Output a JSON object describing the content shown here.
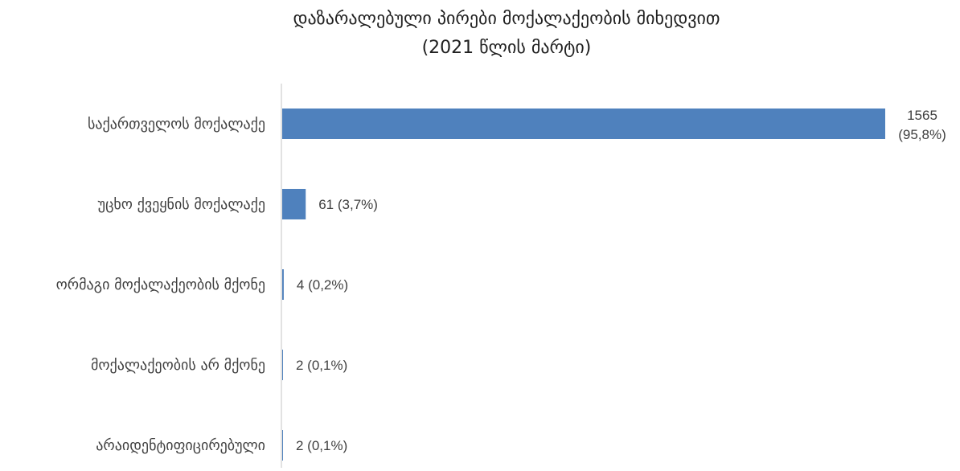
{
  "chart_data": {
    "type": "bar",
    "orientation": "horizontal",
    "title": "დაზარალებული პირები მოქალაქეობის მიხედვით",
    "subtitle": "(2021 წლის  მარტი)",
    "categories": [
      "საქართველოს მოქალაქე",
      "უცხო ქვეყნის მოქალაქე",
      "ორმაგი მოქალაქეობის მქონე",
      "მოქალაქეობის არ მქონე",
      "არაიდენტიფიცირებული"
    ],
    "values": [
      1565,
      61,
      4,
      2,
      2
    ],
    "data_labels": [
      [
        "1565",
        "(95,8%)"
      ],
      [
        "61 (3,7%)"
      ],
      [
        "4 (0,2%)"
      ],
      [
        "2 (0,1%)"
      ],
      [
        "2 (0,1%)"
      ]
    ],
    "xlim": [
      0,
      1565
    ],
    "grid": false,
    "legend": "none",
    "colors": {
      "bar": "#4f81bd",
      "axis": "#d9d9d9"
    }
  }
}
